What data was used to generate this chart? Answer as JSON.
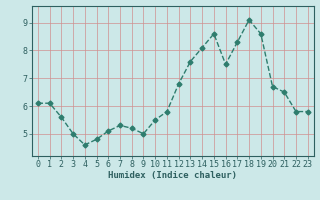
{
  "xlabel": "Humidex (Indice chaleur)",
  "x_values": [
    0,
    1,
    2,
    3,
    4,
    5,
    6,
    7,
    8,
    9,
    10,
    11,
    12,
    13,
    14,
    15,
    16,
    17,
    18,
    19,
    20,
    21,
    22,
    23
  ],
  "y_values": [
    6.1,
    6.1,
    5.6,
    5.0,
    4.6,
    4.8,
    5.1,
    5.3,
    5.2,
    5.0,
    5.5,
    5.8,
    6.8,
    7.6,
    8.1,
    8.6,
    7.5,
    8.3,
    9.1,
    8.6,
    6.7,
    6.5,
    5.8,
    5.8
  ],
  "line_color": "#2e7d6e",
  "marker": "D",
  "marker_size": 2.5,
  "line_width": 1.0,
  "bg_color": "#cce8e8",
  "grid_color": "#d09090",
  "tick_color": "#2e6060",
  "label_color": "#2e6060",
  "ylim": [
    4.2,
    9.6
  ],
  "yticks": [
    5,
    6,
    7,
    8,
    9
  ],
  "xlim": [
    -0.5,
    23.5
  ],
  "axis_fontsize": 6.5,
  "tick_fontsize": 6.0
}
